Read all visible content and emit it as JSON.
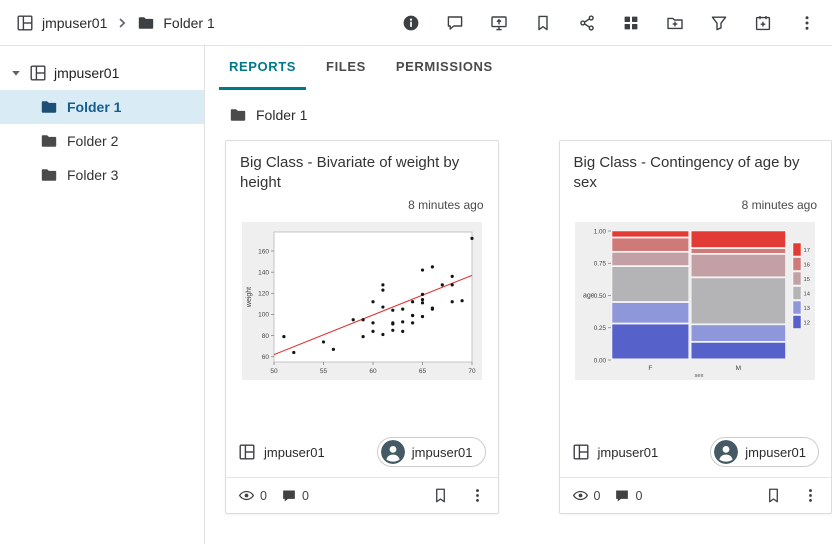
{
  "header": {
    "breadcrumb": {
      "root": "jmpuser01",
      "current": "Folder 1"
    },
    "icons": [
      "info",
      "comment",
      "screen-share",
      "bookmark",
      "share",
      "apps",
      "folder-add",
      "filter",
      "calendar-add",
      "more"
    ]
  },
  "sidebar": {
    "root_label": "jmpuser01",
    "items": [
      {
        "label": "Folder 1",
        "selected": true
      },
      {
        "label": "Folder 2",
        "selected": false
      },
      {
        "label": "Folder 3",
        "selected": false
      }
    ]
  },
  "tabs": [
    {
      "label": "REPORTS",
      "active": true
    },
    {
      "label": "FILES",
      "active": false
    },
    {
      "label": "PERMISSIONS",
      "active": false
    }
  ],
  "folder_label": "Folder 1",
  "cards": [
    {
      "title": "Big Class - Bivariate of weight by height",
      "timestamp": "8 minutes ago",
      "owner": "jmpuser01",
      "author": "jmpuser01",
      "views": "0",
      "comments": "0"
    },
    {
      "title": "Big Class - Contingency of age by sex",
      "timestamp": "8 minutes ago",
      "owner": "jmpuser01",
      "author": "jmpuser01",
      "views": "0",
      "comments": "0"
    }
  ],
  "colors": {
    "accent_teal": "#00798b",
    "selected_item_bg": "#d9ecf6",
    "selected_item_text": "#155d8c",
    "fit_line_red": "#e0393b",
    "avatar_bg": "#455a64"
  },
  "chart_data": [
    {
      "type": "scatter",
      "title": "Big Class - Bivariate of weight by height",
      "xlabel": "",
      "ylabel": "weight",
      "xlim": [
        50,
        70
      ],
      "ylim": [
        55,
        178
      ],
      "xticks": [
        50,
        55,
        60,
        65,
        70
      ],
      "yticks": [
        60,
        80,
        100,
        120,
        140,
        160
      ],
      "points": [
        [
          59,
          95
        ],
        [
          61,
          123
        ],
        [
          55,
          74
        ],
        [
          66,
          145
        ],
        [
          52,
          64
        ],
        [
          60,
          84
        ],
        [
          61,
          128
        ],
        [
          51,
          79
        ],
        [
          60,
          112
        ],
        [
          61,
          107
        ],
        [
          56,
          67
        ],
        [
          65,
          98
        ],
        [
          63,
          105
        ],
        [
          58,
          95
        ],
        [
          59,
          79
        ],
        [
          61,
          81
        ],
        [
          62,
          91
        ],
        [
          65,
          142
        ],
        [
          63,
          84
        ],
        [
          62,
          85
        ],
        [
          63,
          93
        ],
        [
          64,
          99
        ],
        [
          65,
          119
        ],
        [
          64,
          92
        ],
        [
          68,
          112
        ],
        [
          64,
          99
        ],
        [
          69,
          113
        ],
        [
          62,
          92
        ],
        [
          64,
          112
        ],
        [
          67,
          128
        ],
        [
          65,
          111
        ],
        [
          66,
          105
        ],
        [
          62,
          104
        ],
        [
          66,
          106
        ],
        [
          65,
          98
        ],
        [
          60,
          92
        ],
        [
          68,
          128
        ],
        [
          65,
          114
        ],
        [
          68,
          136
        ],
        [
          70,
          172
        ]
      ],
      "fit_line": {
        "x1": 50,
        "y1": 62,
        "x2": 70,
        "y2": 137,
        "color": "#e0393b"
      },
      "bg": "#efefef",
      "point_color": "#141414"
    },
    {
      "type": "mosaic",
      "title": "Big Class - Contingency of age by sex",
      "xlabel": "sex",
      "ylabel": "age",
      "yticks": [
        "1.00",
        "0.75",
        "0.50",
        "0.25",
        "0.00"
      ],
      "categories": [
        "F",
        "M"
      ],
      "col_widths": [
        0.45,
        0.55
      ],
      "levels": [
        "12",
        "13",
        "14",
        "15",
        "16",
        "17"
      ],
      "colors": {
        "12": "#5661c9",
        "13": "#8e97d9",
        "14": "#b4b4b7",
        "15": "#c2a0a6",
        "16": "#cf7a78",
        "17": "#e23b36"
      },
      "proportions": {
        "F": [
          0.278,
          0.167,
          0.278,
          0.111,
          0.111,
          0.055
        ],
        "M": [
          0.136,
          0.136,
          0.364,
          0.182,
          0.045,
          0.137
        ]
      },
      "legend": [
        {
          "label": "17",
          "color": "#e23b36"
        },
        {
          "label": "16",
          "color": "#cf7a78"
        },
        {
          "label": "15",
          "color": "#c2a0a6"
        },
        {
          "label": "14",
          "color": "#b4b4b7"
        },
        {
          "label": "13",
          "color": "#8e97d9"
        },
        {
          "label": "12",
          "color": "#5661c9"
        }
      ],
      "bg": "#efefef"
    }
  ]
}
